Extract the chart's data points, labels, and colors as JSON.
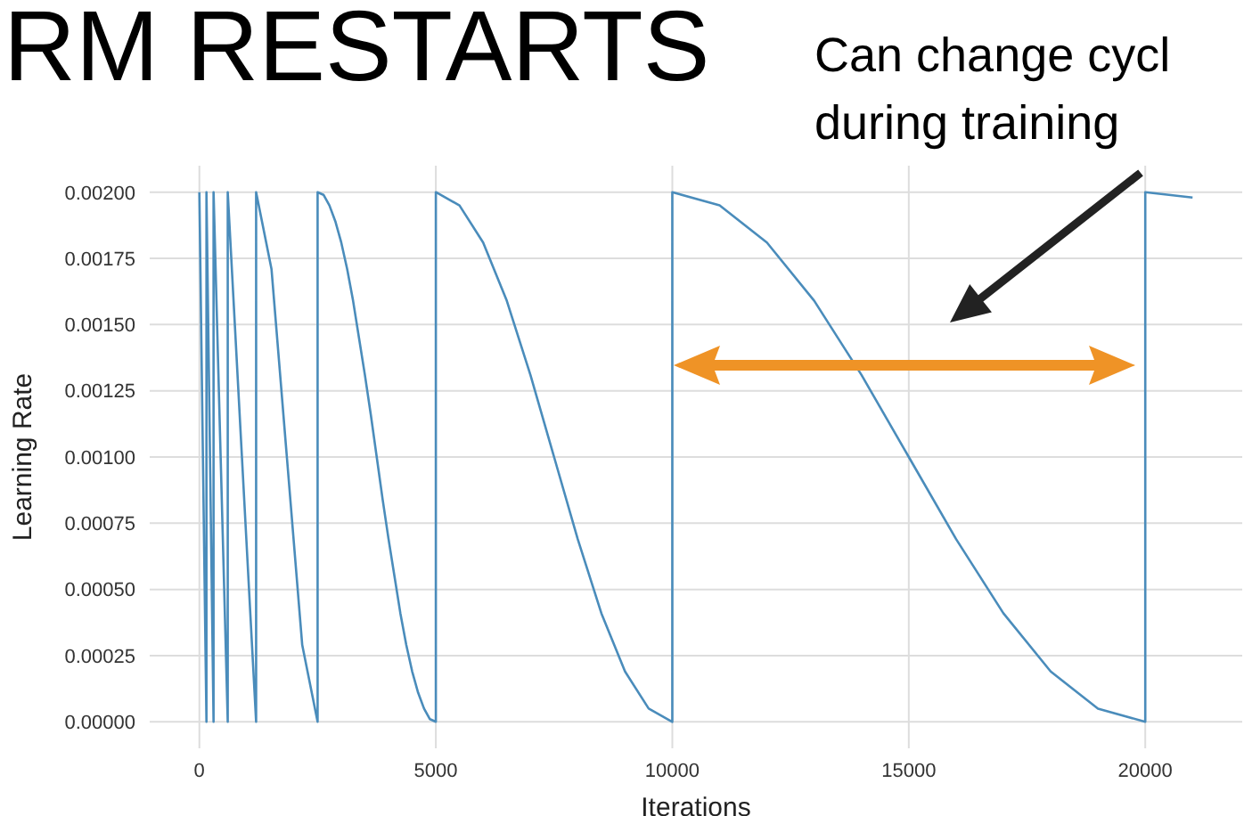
{
  "chart_data": {
    "type": "line",
    "title": "RM RESTARTS",
    "annotations": [
      "Can change cycl",
      "during training"
    ],
    "xlabel": "Iterations",
    "ylabel": "Learning Rate",
    "x": [
      0,
      75,
      150,
      150,
      225,
      300,
      300,
      450,
      600,
      600,
      900,
      1200,
      1200,
      1525,
      1850,
      2175,
      2500,
      2500,
      2625,
      2750,
      2875,
      3000,
      3125,
      3250,
      3375,
      3500,
      3625,
      3750,
      3875,
      4000,
      4125,
      4250,
      4375,
      4500,
      4625,
      4750,
      4875,
      5000,
      5000,
      5500,
      6000,
      6500,
      7000,
      7500,
      8000,
      8500,
      9000,
      9500,
      10000,
      10000,
      11000,
      12000,
      13000,
      14000,
      15000,
      16000,
      17000,
      18000,
      19000,
      20000,
      20000,
      20500,
      21000
    ],
    "series": [
      {
        "color": "#4a8cbb",
        "values": [
          0.002,
          0.001,
          0,
          0.002,
          0.001,
          0,
          0.002,
          0.001,
          0,
          0.002,
          0.001,
          0,
          0.002,
          0.00171,
          0.001,
          0.00029,
          0,
          0.002,
          0.00199,
          0.00195,
          0.00189,
          0.00181,
          0.00171,
          0.00159,
          0.00145,
          0.00131,
          0.00116,
          0.001,
          0.00084,
          0.00069,
          0.00055,
          0.00041,
          0.00029,
          0.00019,
          0.00011,
          5e-05,
          1e-05,
          0,
          0.002,
          0.00195,
          0.00181,
          0.00159,
          0.00131,
          0.001,
          0.00069,
          0.00041,
          0.00019,
          5e-05,
          0,
          0.002,
          0.00195,
          0.00181,
          0.00159,
          0.00131,
          0.001,
          0.00069,
          0.00041,
          0.00019,
          5e-05,
          0,
          0.002,
          0.00199,
          0.00198
        ]
      }
    ],
    "xlim": [
      -1050,
      22050
    ],
    "xticks": [
      0,
      5000,
      10000,
      15000,
      20000
    ],
    "ylim": [
      -0.0001,
      0.0021
    ],
    "yticks": [
      {
        "value": 0,
        "label": "0.00000"
      },
      {
        "value": 0.00025,
        "label": "0.00025"
      },
      {
        "value": 0.0005,
        "label": "0.00050"
      },
      {
        "value": 0.00075,
        "label": "0.00075"
      },
      {
        "value": 0.001,
        "label": "0.00100"
      },
      {
        "value": 0.00125,
        "label": "0.00125"
      },
      {
        "value": 0.0015,
        "label": "0.00150"
      },
      {
        "value": 0.00175,
        "label": "0.00175"
      },
      {
        "value": 0.002,
        "label": "0.00200"
      }
    ],
    "grid": true,
    "marker": "none",
    "line_style": "solid"
  }
}
